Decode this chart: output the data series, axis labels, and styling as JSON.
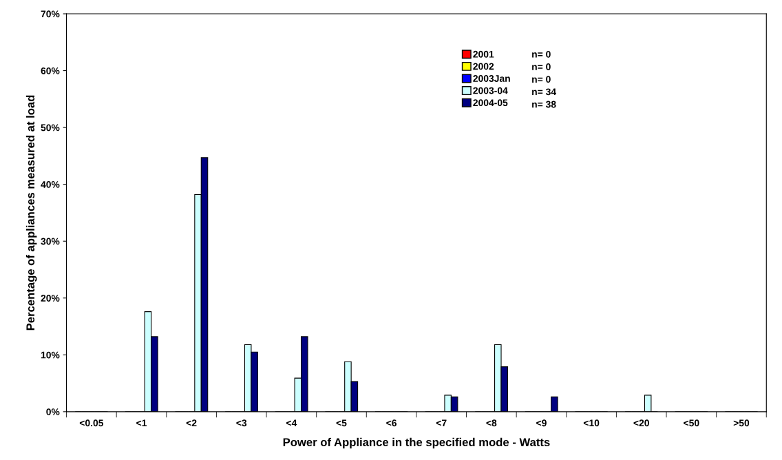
{
  "chart_data": {
    "type": "bar",
    "xlabel": "Power of Appliance in the specified mode - Watts",
    "ylabel": "Percentage of appliances measured at load",
    "categories": [
      "<0.05",
      "<1",
      "<2",
      "<3",
      "<4",
      "<5",
      "<6",
      "<7",
      "<8",
      "<9",
      "<10",
      "<20",
      "<50",
      ">50"
    ],
    "series": [
      {
        "name": "2001",
        "color": "#ff0000",
        "values": [
          0,
          0,
          0,
          0,
          0,
          0,
          0,
          0,
          0,
          0,
          0,
          0,
          0,
          0
        ]
      },
      {
        "name": "2002",
        "color": "#ffff00",
        "values": [
          0,
          0,
          0,
          0,
          0,
          0,
          0,
          0,
          0,
          0,
          0,
          0,
          0,
          0
        ]
      },
      {
        "name": "2003Jan",
        "color": "#0000ff",
        "values": [
          0,
          0,
          0,
          0,
          0,
          0,
          0,
          0,
          0,
          0,
          0,
          0,
          0,
          0
        ]
      },
      {
        "name": "2003-04",
        "color": "#ccffff",
        "values": [
          0,
          17.6,
          38.2,
          11.8,
          5.9,
          8.8,
          0,
          2.9,
          11.8,
          0,
          0,
          2.9,
          0,
          0
        ]
      },
      {
        "name": "2004-05",
        "color": "#000080",
        "values": [
          0,
          13.2,
          44.7,
          10.5,
          13.2,
          5.3,
          0,
          2.6,
          7.9,
          2.6,
          0,
          0,
          0,
          0
        ]
      }
    ],
    "annotations": [
      "n= 0",
      "n= 0",
      "n= 0",
      "n= 34",
      "n= 38"
    ],
    "ylim": [
      0,
      70
    ],
    "yticks": [
      {
        "value": 0,
        "label": "0%"
      },
      {
        "value": 10,
        "label": "10%"
      },
      {
        "value": 20,
        "label": "20%"
      },
      {
        "value": 30,
        "label": "30%"
      },
      {
        "value": 40,
        "label": "40%"
      },
      {
        "value": 50,
        "label": "50%"
      },
      {
        "value": 60,
        "label": "60%"
      },
      {
        "value": 70,
        "label": "70%"
      }
    ],
    "legend": "top",
    "grid": false
  }
}
